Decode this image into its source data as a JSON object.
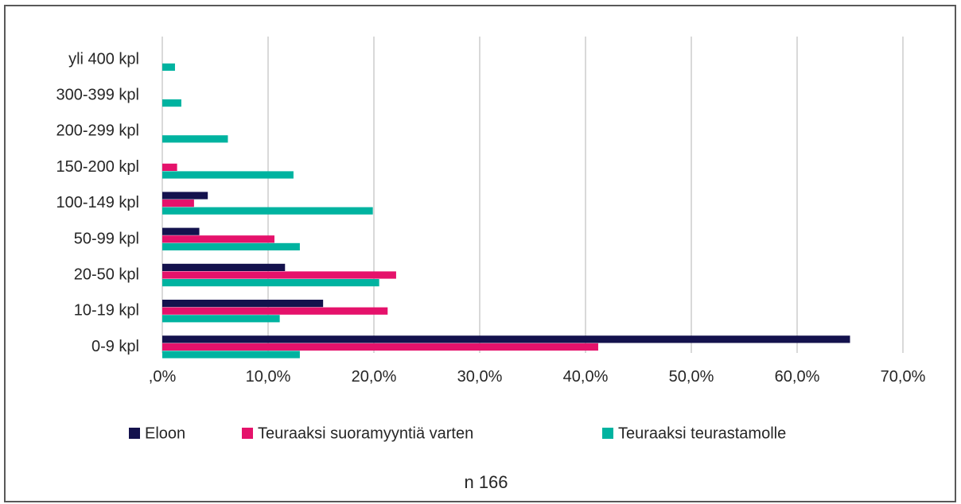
{
  "chart_data": {
    "type": "bar",
    "orientation": "horizontal",
    "categories": [
      "0-9 kpl",
      "10-19 kpl",
      "20-50 kpl",
      "50-99 kpl",
      "100-149 kpl",
      "150-200 kpl",
      "200-299 kpl",
      "300-399 kpl",
      "yli 400 kpl"
    ],
    "series": [
      {
        "name": "Eloon",
        "color": "#14124d",
        "values": [
          65.0,
          15.2,
          11.6,
          3.5,
          4.3,
          0,
          0,
          0,
          0
        ]
      },
      {
        "name": "Teuraaksi suoramyyntiä varten",
        "color": "#e5126b",
        "values": [
          41.2,
          21.3,
          22.1,
          10.6,
          3.0,
          1.4,
          0,
          0,
          0
        ]
      },
      {
        "name": "Teuraaksi teurastamolle",
        "color": "#00b3a0",
        "values": [
          13.0,
          11.1,
          20.5,
          13.0,
          19.9,
          12.4,
          6.2,
          1.8,
          1.2
        ]
      }
    ],
    "xlim": [
      0,
      70
    ],
    "xticks": [
      ",0%",
      "10,0%",
      "20,0%",
      "30,0%",
      "40,0%",
      "50,0%",
      "60,0%",
      "70,0%"
    ],
    "grid": true,
    "legend_position": "bottom",
    "note": "n 166"
  }
}
